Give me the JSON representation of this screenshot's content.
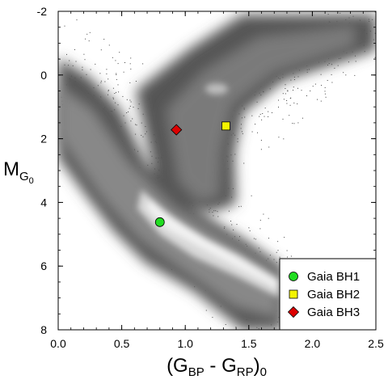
{
  "chart_data": {
    "type": "scatter",
    "background": "density map of stars (Gaia HR diagram)",
    "xlim": [
      0.0,
      2.5
    ],
    "ylim": [
      8,
      -2
    ],
    "y_inverted": true,
    "x_ticks": [
      0.0,
      0.5,
      1.0,
      1.5,
      2.0,
      2.5
    ],
    "x_tick_labels": [
      "0.0",
      "0.5",
      "1.0",
      "1.5",
      "2.0",
      "2.5"
    ],
    "y_ticks": [
      -2,
      0,
      2,
      4,
      6,
      8
    ],
    "y_tick_labels": [
      "-2",
      "0",
      "2",
      "4",
      "6",
      "8"
    ],
    "xlabel": {
      "open": "(G",
      "sub1": "BP",
      "mid": " - G",
      "sub2": "RP",
      "close": ")",
      "sub3": "0"
    },
    "ylabel": {
      "main": "M",
      "sub": "G",
      "subsub": "0"
    },
    "legend_position": "bottom-right",
    "series": [
      {
        "name": "Gaia BH1",
        "x": 0.8,
        "y": 4.62,
        "marker": "circle",
        "color": "#22dd22"
      },
      {
        "name": "Gaia BH2",
        "x": 1.32,
        "y": 1.6,
        "marker": "square",
        "color": "#f4f400"
      },
      {
        "name": "Gaia BH3",
        "x": 0.93,
        "y": 1.72,
        "marker": "diamond",
        "color": "#dd0000"
      }
    ]
  }
}
